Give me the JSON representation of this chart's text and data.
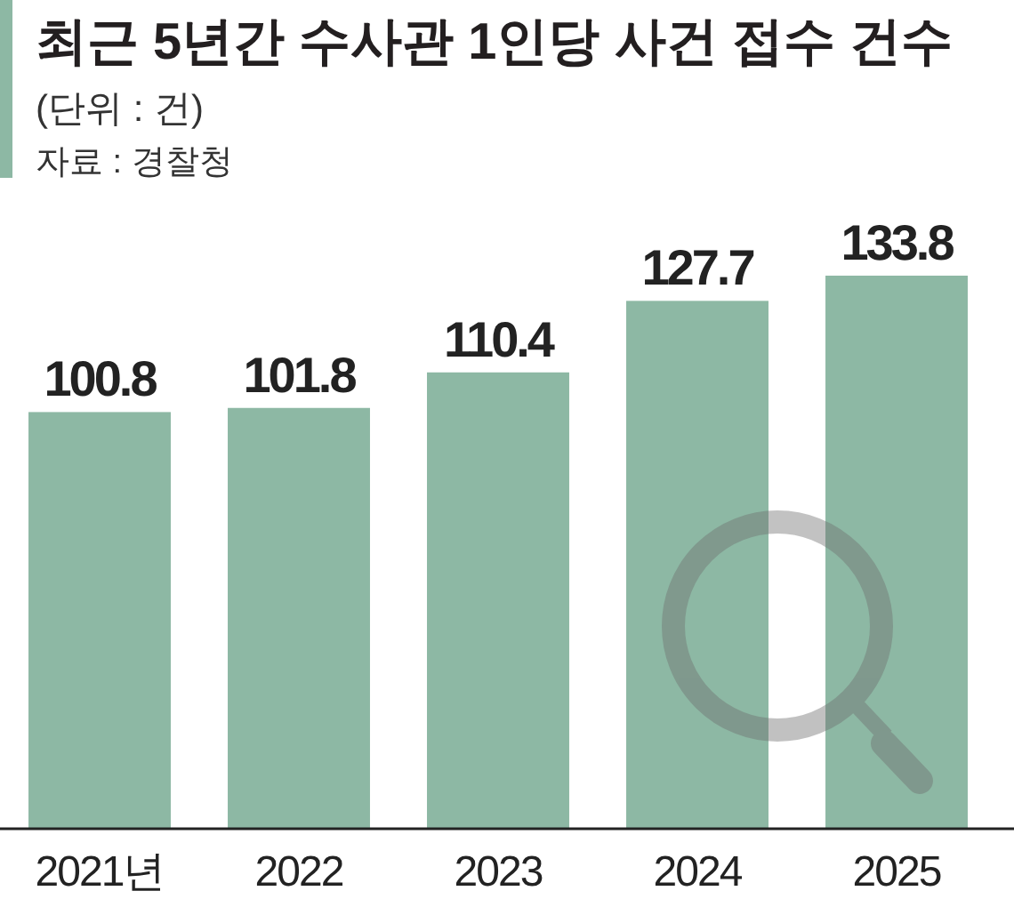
{
  "chart_data": {
    "type": "bar",
    "title": "최근 5년간 수사관 1인당 사건 접수 건수",
    "subtitle": "(단위 : 건)",
    "annotations": [
      "자료 : 경찰청"
    ],
    "categories": [
      "2021년",
      "2022",
      "2023",
      "2024",
      "2025"
    ],
    "values": [
      100.8,
      101.8,
      110.4,
      127.7,
      133.8
    ],
    "color": "#8db8a4",
    "data_labels": true,
    "tick_labels": "x"
  }
}
